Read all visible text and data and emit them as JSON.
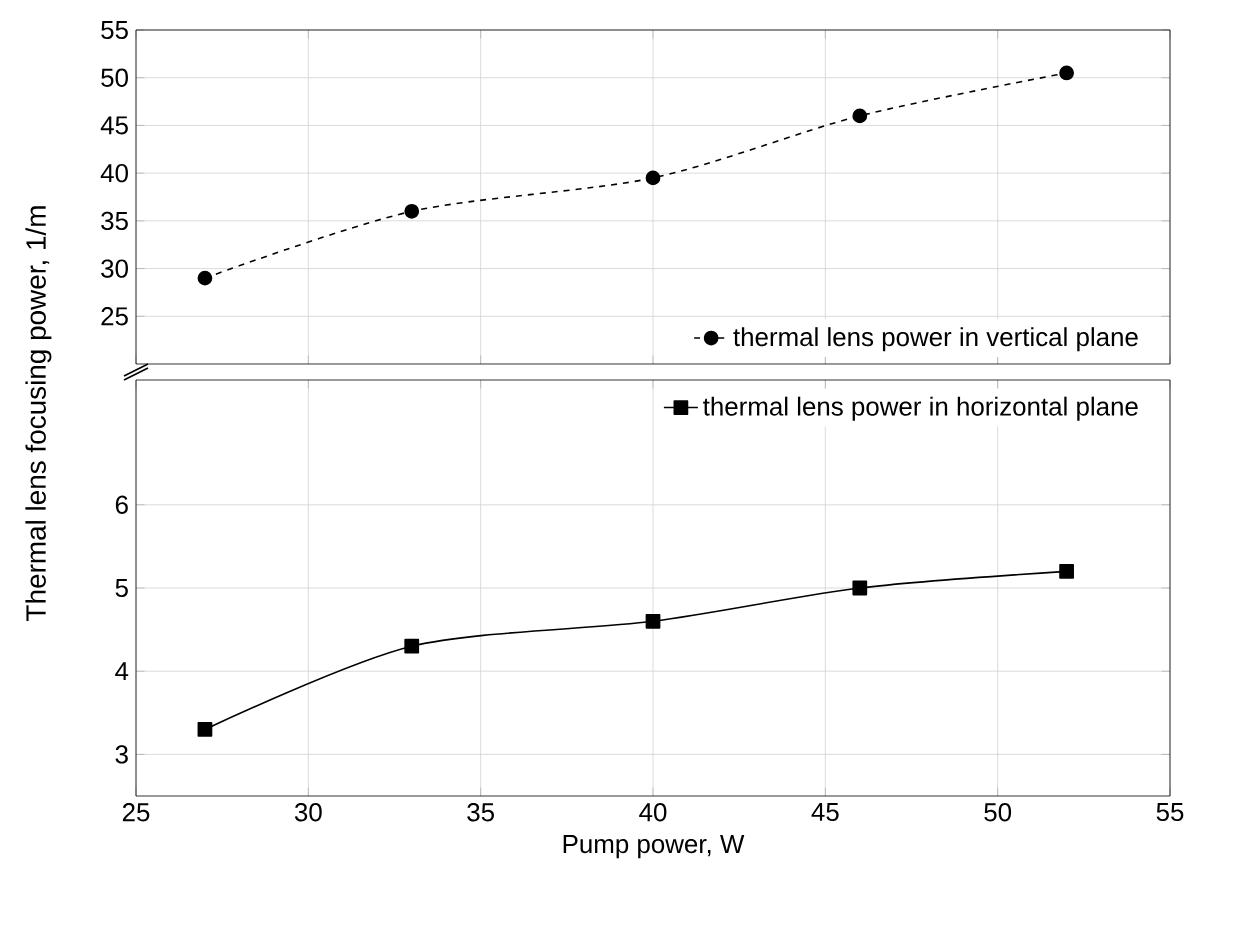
{
  "chart_data": [
    {
      "type": "line",
      "ylabel": "Thermal lens focusing power, 1/m",
      "x": [
        27,
        33,
        40,
        46,
        52
      ],
      "series": [
        {
          "name": "thermal lens power in vertical plane",
          "color": "#000000",
          "values": [
            29,
            36,
            39.5,
            46,
            50.5
          ],
          "marker": "circle",
          "line_style": "dashed"
        }
      ],
      "xlim": [
        25,
        55
      ],
      "xticks": [
        25,
        30,
        35,
        40,
        45,
        50,
        55
      ],
      "ylim": [
        20,
        55
      ],
      "yticks": [
        25,
        30,
        35,
        40,
        45,
        50,
        55
      ],
      "grid": true,
      "legend": "bottom right",
      "tick_labels": "y"
    },
    {
      "type": "line",
      "xlabel": "Pump power, W",
      "x": [
        27,
        33,
        40,
        46,
        52
      ],
      "series": [
        {
          "name": "thermal lens power in horizontal plane",
          "color": "#000000",
          "values": [
            3.3,
            4.3,
            4.6,
            5.0,
            5.2
          ],
          "marker": "square",
          "line_style": "solid"
        }
      ],
      "xlim": [
        25,
        55
      ],
      "xticks": [
        25,
        30,
        35,
        40,
        45,
        50,
        55
      ],
      "ylim": [
        2.5,
        7.5
      ],
      "yticks": [
        3,
        4,
        5,
        6
      ],
      "grid": true,
      "legend": "top right"
    }
  ]
}
